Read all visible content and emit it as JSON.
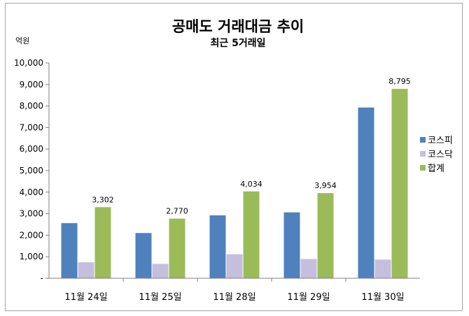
{
  "chart_data": {
    "type": "bar",
    "title": "공매도 거래대금 추이",
    "subtitle": "최근 5거래일",
    "ylabel": "억원",
    "ylim": [
      0,
      10000
    ],
    "yticks": [
      0,
      1000,
      2000,
      3000,
      4000,
      5000,
      6000,
      7000,
      8000,
      9000,
      10000
    ],
    "ytick_labels": [
      "-",
      "1,000",
      "2,000",
      "3,000",
      "4,000",
      "5,000",
      "6,000",
      "7,000",
      "8,000",
      "9,000",
      "10,000"
    ],
    "categories": [
      "11월 24일",
      "11월 25일",
      "11월 28일",
      "11월 29일",
      "11월 30일"
    ],
    "series": [
      {
        "name": "코스피",
        "color": "#4f81bd",
        "values": [
          2560,
          2100,
          2920,
          3060,
          7930
        ]
      },
      {
        "name": "코스닥",
        "color": "#c5bedd",
        "values": [
          742,
          670,
          1114,
          894,
          865
        ]
      },
      {
        "name": "합계",
        "color": "#9bbb59",
        "values": [
          3302,
          2770,
          4034,
          3954,
          8795
        ]
      }
    ],
    "data_labels": {
      "series": "합계",
      "labels": [
        "3,302",
        "2,770",
        "4,034",
        "3,954",
        "8,795"
      ]
    },
    "legend": "right",
    "grid": false
  }
}
